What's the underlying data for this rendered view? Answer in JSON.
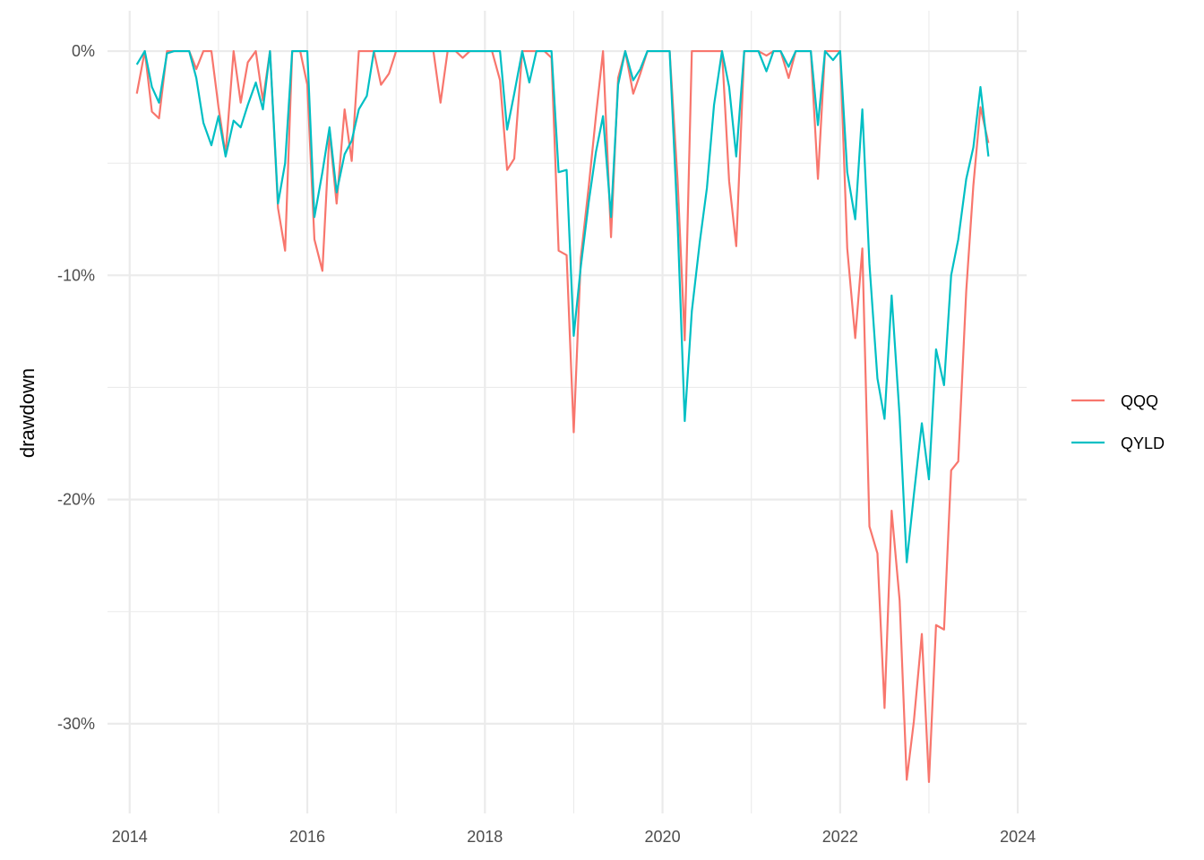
{
  "chart_data": {
    "type": "line",
    "title": "",
    "xlabel": "",
    "ylabel": "drawdown",
    "xlim": [
      2013.75,
      2024.1
    ],
    "ylim": [
      -34.0,
      1.8
    ],
    "x_ticks": [
      2014,
      2016,
      2018,
      2020,
      2022,
      2024
    ],
    "x_tick_labels": [
      "2014",
      "2016",
      "2018",
      "2020",
      "2022",
      "2024"
    ],
    "y_ticks": [
      0,
      -10,
      -20,
      -30
    ],
    "y_tick_labels": [
      "0%",
      "-10%",
      "-20%",
      "-30%"
    ],
    "grid": true,
    "legend_position": "right",
    "series": [
      {
        "name": "QQQ",
        "color": "#F8766D",
        "points": [
          [
            2014.08,
            -1.9
          ],
          [
            2014.17,
            0.0
          ],
          [
            2014.25,
            -2.7
          ],
          [
            2014.33,
            -3.0
          ],
          [
            2014.42,
            0.0
          ],
          [
            2014.5,
            0.0
          ],
          [
            2014.58,
            0.0
          ],
          [
            2014.67,
            0.0
          ],
          [
            2014.75,
            -0.8
          ],
          [
            2014.83,
            0.0
          ],
          [
            2014.92,
            0.0
          ],
          [
            2015.0,
            -2.5
          ],
          [
            2015.08,
            -4.6
          ],
          [
            2015.17,
            0.0
          ],
          [
            2015.25,
            -2.3
          ],
          [
            2015.33,
            -0.5
          ],
          [
            2015.42,
            0.0
          ],
          [
            2015.5,
            -2.2
          ],
          [
            2015.58,
            0.0
          ],
          [
            2015.67,
            -7.0
          ],
          [
            2015.75,
            -8.9
          ],
          [
            2015.83,
            0.0
          ],
          [
            2015.92,
            0.0
          ],
          [
            2016.0,
            -1.5
          ],
          [
            2016.08,
            -8.4
          ],
          [
            2016.17,
            -9.8
          ],
          [
            2016.25,
            -3.6
          ],
          [
            2016.33,
            -6.8
          ],
          [
            2016.42,
            -2.6
          ],
          [
            2016.5,
            -4.9
          ],
          [
            2016.58,
            0.0
          ],
          [
            2016.67,
            0.0
          ],
          [
            2016.75,
            0.0
          ],
          [
            2016.83,
            -1.5
          ],
          [
            2016.92,
            -1.0
          ],
          [
            2017.0,
            0.0
          ],
          [
            2017.08,
            0.0
          ],
          [
            2017.17,
            0.0
          ],
          [
            2017.25,
            0.0
          ],
          [
            2017.33,
            0.0
          ],
          [
            2017.42,
            0.0
          ],
          [
            2017.5,
            -2.3
          ],
          [
            2017.58,
            0.0
          ],
          [
            2017.67,
            0.0
          ],
          [
            2017.75,
            -0.3
          ],
          [
            2017.83,
            0.0
          ],
          [
            2017.92,
            0.0
          ],
          [
            2018.0,
            0.0
          ],
          [
            2018.08,
            0.0
          ],
          [
            2018.17,
            -1.3
          ],
          [
            2018.25,
            -5.3
          ],
          [
            2018.33,
            -4.8
          ],
          [
            2018.42,
            0.0
          ],
          [
            2018.5,
            0.0
          ],
          [
            2018.58,
            0.0
          ],
          [
            2018.67,
            0.0
          ],
          [
            2018.75,
            -0.3
          ],
          [
            2018.83,
            -8.9
          ],
          [
            2018.92,
            -9.1
          ],
          [
            2019.0,
            -17.0
          ],
          [
            2019.08,
            -9.2
          ],
          [
            2019.17,
            -6.0
          ],
          [
            2019.25,
            -2.9
          ],
          [
            2019.33,
            0.0
          ],
          [
            2019.42,
            -8.3
          ],
          [
            2019.5,
            -1.2
          ],
          [
            2019.58,
            0.0
          ],
          [
            2019.67,
            -1.9
          ],
          [
            2019.75,
            -1.0
          ],
          [
            2019.83,
            0.0
          ],
          [
            2019.92,
            0.0
          ],
          [
            2020.0,
            0.0
          ],
          [
            2020.08,
            0.0
          ],
          [
            2020.17,
            -5.8
          ],
          [
            2020.25,
            -12.9
          ],
          [
            2020.33,
            0.0
          ],
          [
            2020.42,
            0.0
          ],
          [
            2020.5,
            0.0
          ],
          [
            2020.58,
            0.0
          ],
          [
            2020.67,
            0.0
          ],
          [
            2020.75,
            -5.8
          ],
          [
            2020.83,
            -8.7
          ],
          [
            2020.92,
            0.0
          ],
          [
            2021.0,
            0.0
          ],
          [
            2021.08,
            0.0
          ],
          [
            2021.17,
            -0.2
          ],
          [
            2021.25,
            0.0
          ],
          [
            2021.33,
            0.0
          ],
          [
            2021.42,
            -1.2
          ],
          [
            2021.5,
            0.0
          ],
          [
            2021.58,
            0.0
          ],
          [
            2021.67,
            0.0
          ],
          [
            2021.75,
            -5.7
          ],
          [
            2021.83,
            0.0
          ],
          [
            2021.92,
            0.0
          ],
          [
            2022.0,
            0.0
          ],
          [
            2022.08,
            -8.8
          ],
          [
            2022.17,
            -12.8
          ],
          [
            2022.25,
            -8.8
          ],
          [
            2022.33,
            -21.2
          ],
          [
            2022.42,
            -22.4
          ],
          [
            2022.5,
            -29.3
          ],
          [
            2022.58,
            -20.5
          ],
          [
            2022.67,
            -24.5
          ],
          [
            2022.75,
            -32.5
          ],
          [
            2022.83,
            -29.9
          ],
          [
            2022.92,
            -26.0
          ],
          [
            2023.0,
            -32.6
          ],
          [
            2023.08,
            -25.6
          ],
          [
            2023.17,
            -25.8
          ],
          [
            2023.25,
            -18.7
          ],
          [
            2023.33,
            -18.3
          ],
          [
            2023.42,
            -10.7
          ],
          [
            2023.5,
            -6.0
          ],
          [
            2023.58,
            -2.5
          ],
          [
            2023.67,
            -4.1
          ]
        ]
      },
      {
        "name": "QYLD",
        "color": "#00BFC4",
        "points": [
          [
            2014.08,
            -0.6
          ],
          [
            2014.17,
            0.0
          ],
          [
            2014.25,
            -1.6
          ],
          [
            2014.33,
            -2.3
          ],
          [
            2014.42,
            -0.1
          ],
          [
            2014.5,
            0.0
          ],
          [
            2014.58,
            0.0
          ],
          [
            2014.67,
            0.0
          ],
          [
            2014.75,
            -1.2
          ],
          [
            2014.83,
            -3.2
          ],
          [
            2014.92,
            -4.2
          ],
          [
            2015.0,
            -2.9
          ],
          [
            2015.08,
            -4.7
          ],
          [
            2015.17,
            -3.1
          ],
          [
            2015.25,
            -3.4
          ],
          [
            2015.33,
            -2.4
          ],
          [
            2015.42,
            -1.4
          ],
          [
            2015.5,
            -2.6
          ],
          [
            2015.58,
            0.0
          ],
          [
            2015.67,
            -6.8
          ],
          [
            2015.75,
            -5.0
          ],
          [
            2015.83,
            0.0
          ],
          [
            2015.92,
            0.0
          ],
          [
            2016.0,
            0.0
          ],
          [
            2016.08,
            -7.4
          ],
          [
            2016.17,
            -5.4
          ],
          [
            2016.25,
            -3.4
          ],
          [
            2016.33,
            -6.3
          ],
          [
            2016.42,
            -4.6
          ],
          [
            2016.5,
            -4.0
          ],
          [
            2016.58,
            -2.6
          ],
          [
            2016.67,
            -2.0
          ],
          [
            2016.75,
            0.0
          ],
          [
            2016.83,
            0.0
          ],
          [
            2016.92,
            0.0
          ],
          [
            2017.0,
            0.0
          ],
          [
            2017.08,
            0.0
          ],
          [
            2017.17,
            0.0
          ],
          [
            2017.25,
            0.0
          ],
          [
            2017.33,
            0.0
          ],
          [
            2017.42,
            0.0
          ],
          [
            2017.5,
            0.0
          ],
          [
            2017.58,
            0.0
          ],
          [
            2017.67,
            0.0
          ],
          [
            2017.75,
            0.0
          ],
          [
            2017.83,
            0.0
          ],
          [
            2017.92,
            0.0
          ],
          [
            2018.0,
            0.0
          ],
          [
            2018.08,
            0.0
          ],
          [
            2018.17,
            0.0
          ],
          [
            2018.25,
            -3.5
          ],
          [
            2018.33,
            -1.9
          ],
          [
            2018.42,
            0.0
          ],
          [
            2018.5,
            -1.4
          ],
          [
            2018.58,
            0.0
          ],
          [
            2018.67,
            0.0
          ],
          [
            2018.75,
            0.0
          ],
          [
            2018.83,
            -5.4
          ],
          [
            2018.92,
            -5.3
          ],
          [
            2019.0,
            -12.7
          ],
          [
            2019.08,
            -9.6
          ],
          [
            2019.17,
            -6.7
          ],
          [
            2019.25,
            -4.5
          ],
          [
            2019.33,
            -2.9
          ],
          [
            2019.42,
            -7.4
          ],
          [
            2019.5,
            -1.5
          ],
          [
            2019.58,
            0.0
          ],
          [
            2019.67,
            -1.3
          ],
          [
            2019.75,
            -0.8
          ],
          [
            2019.83,
            0.0
          ],
          [
            2019.92,
            0.0
          ],
          [
            2020.0,
            0.0
          ],
          [
            2020.08,
            0.0
          ],
          [
            2020.17,
            -7.7
          ],
          [
            2020.25,
            -16.5
          ],
          [
            2020.33,
            -11.6
          ],
          [
            2020.42,
            -8.5
          ],
          [
            2020.5,
            -6.1
          ],
          [
            2020.58,
            -2.4
          ],
          [
            2020.67,
            0.0
          ],
          [
            2020.75,
            -1.6
          ],
          [
            2020.83,
            -4.7
          ],
          [
            2020.92,
            0.0
          ],
          [
            2021.0,
            0.0
          ],
          [
            2021.08,
            0.0
          ],
          [
            2021.17,
            -0.9
          ],
          [
            2021.25,
            0.0
          ],
          [
            2021.33,
            0.0
          ],
          [
            2021.42,
            -0.7
          ],
          [
            2021.5,
            0.0
          ],
          [
            2021.58,
            0.0
          ],
          [
            2021.67,
            0.0
          ],
          [
            2021.75,
            -3.3
          ],
          [
            2021.83,
            0.0
          ],
          [
            2021.92,
            -0.4
          ],
          [
            2022.0,
            0.0
          ],
          [
            2022.08,
            -5.4
          ],
          [
            2022.17,
            -7.5
          ],
          [
            2022.25,
            -2.6
          ],
          [
            2022.33,
            -9.5
          ],
          [
            2022.42,
            -14.6
          ],
          [
            2022.5,
            -16.4
          ],
          [
            2022.58,
            -10.9
          ],
          [
            2022.67,
            -16.3
          ],
          [
            2022.75,
            -22.8
          ],
          [
            2022.83,
            -19.8
          ],
          [
            2022.92,
            -16.6
          ],
          [
            2023.0,
            -19.1
          ],
          [
            2023.08,
            -13.3
          ],
          [
            2023.17,
            -14.9
          ],
          [
            2023.25,
            -10.0
          ],
          [
            2023.33,
            -8.4
          ],
          [
            2023.42,
            -5.7
          ],
          [
            2023.5,
            -4.3
          ],
          [
            2023.58,
            -1.6
          ],
          [
            2023.67,
            -4.7
          ]
        ]
      }
    ]
  }
}
